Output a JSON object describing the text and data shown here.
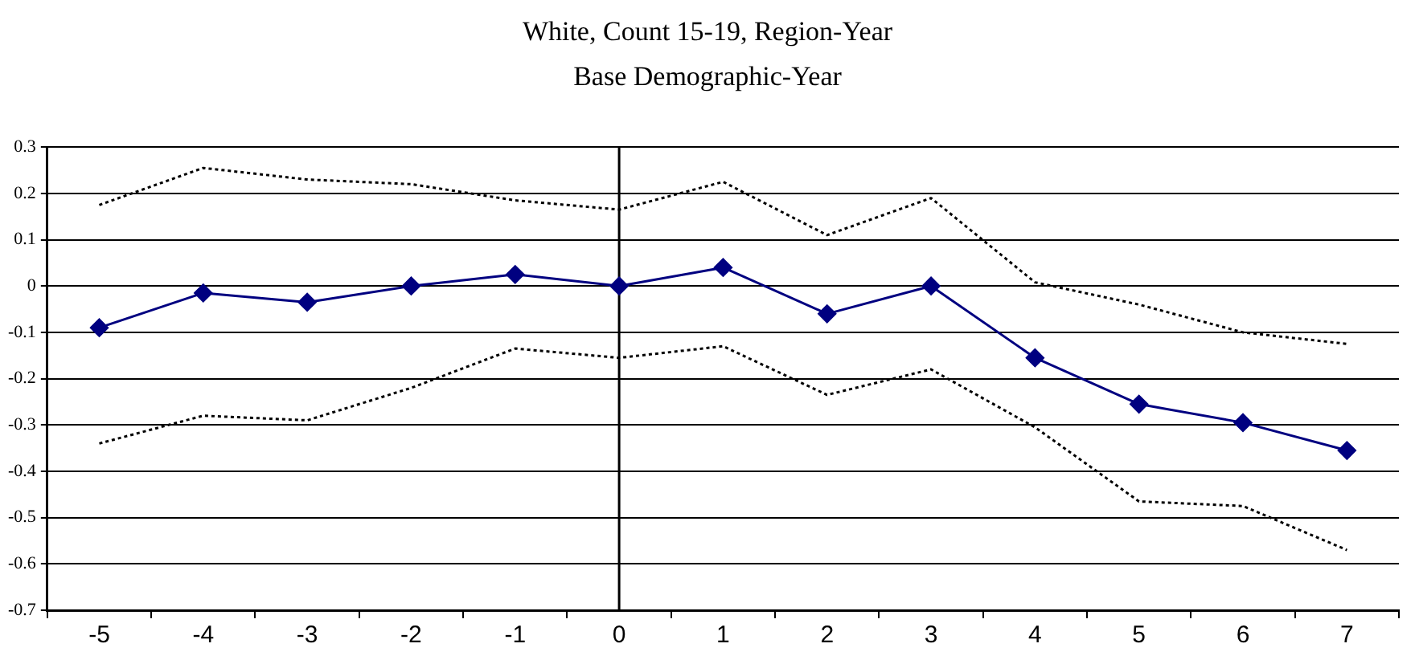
{
  "chart_data": {
    "type": "line",
    "title": "White, Count 15-19, Region-Year",
    "subtitle": "Base Demographic-Year",
    "categories": [
      "-5",
      "-4",
      "-3",
      "-2",
      "-1",
      "0",
      "1",
      "2",
      "3",
      "4",
      "5",
      "6",
      "7"
    ],
    "series": [
      {
        "color": "#000080",
        "marker": "diamond",
        "line_style": "solid",
        "values": [
          -0.09,
          -0.015,
          -0.035,
          0,
          0.025,
          0,
          0.04,
          -0.06,
          0,
          -0.155,
          -0.255,
          -0.295,
          -0.355
        ]
      },
      {
        "color": "#000000",
        "marker": "none",
        "line_style": "dotted",
        "values": [
          0.175,
          0.255,
          0.23,
          0.22,
          0.185,
          0.165,
          0.225,
          0.11,
          0.19,
          0.008,
          -0.04,
          -0.1,
          -0.125
        ]
      },
      {
        "color": "#000000",
        "marker": "none",
        "line_style": "dotted",
        "values": [
          -0.34,
          -0.28,
          -0.29,
          -0.22,
          -0.135,
          -0.155,
          -0.13,
          -0.235,
          -0.18,
          -0.305,
          -0.465,
          -0.475,
          -0.57
        ]
      }
    ],
    "ylim": [
      -0.7,
      0.3
    ],
    "yticks": [
      0.3,
      0.2,
      0.1,
      0,
      -0.1,
      -0.2,
      -0.3,
      -0.4,
      -0.5,
      -0.6,
      -0.7
    ],
    "ref_lines": [
      {
        "axis": "x",
        "value": "0",
        "color": "#000000"
      }
    ],
    "grid": "y",
    "legend": false
  }
}
